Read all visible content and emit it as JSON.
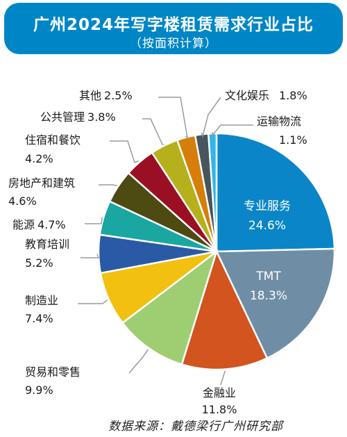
{
  "header": {
    "title": "广州2024年写字楼租赁需求行业占比",
    "subtitle": "（按面积计算）"
  },
  "source": "数据来源：戴德梁行广州研究部",
  "colors": {
    "header_bg": "#0086c7",
    "leader_line": "#9a9a9a"
  },
  "chart_data": {
    "type": "pie",
    "title": "广州2024年写字楼租赁需求行业占比",
    "subtitle": "（按面积计算）",
    "unit": "%",
    "slices": [
      {
        "name": "专业服务",
        "value": 24.6,
        "label": "24.6%",
        "color": "#0a86c8"
      },
      {
        "name": "TMT",
        "value": 18.3,
        "label": "18.3%",
        "color": "#6f8ea5"
      },
      {
        "name": "金融业",
        "value": 11.8,
        "label": "11.8%",
        "color": "#d2541f"
      },
      {
        "name": "贸易和零售",
        "value": 9.9,
        "label": "9.9%",
        "color": "#9fce72"
      },
      {
        "name": "制造业",
        "value": 7.4,
        "label": "7.4%",
        "color": "#f2c010"
      },
      {
        "name": "教育培训",
        "value": 5.2,
        "label": "5.2%",
        "color": "#2a5aa5"
      },
      {
        "name": "能源",
        "value": 4.7,
        "label": "4.7%",
        "color": "#1aa7a2"
      },
      {
        "name": "房地产和建筑",
        "value": 4.6,
        "label": "4.6%",
        "color": "#4d4a12"
      },
      {
        "name": "住宿和餐饮",
        "value": 4.2,
        "label": "4.2%",
        "color": "#9b0f24"
      },
      {
        "name": "公共管理",
        "value": 3.8,
        "label": "3.8%",
        "color": "#b6b01c"
      },
      {
        "name": "其他",
        "value": 2.5,
        "label": "2.5%",
        "color": "#d67e0a"
      },
      {
        "name": "文化娱乐",
        "value": 1.8,
        "label": "1.8%",
        "color": "#47555c"
      },
      {
        "name": "运输物流",
        "value": 1.1,
        "label": "1.1%",
        "color": "#32b5ea"
      }
    ]
  }
}
